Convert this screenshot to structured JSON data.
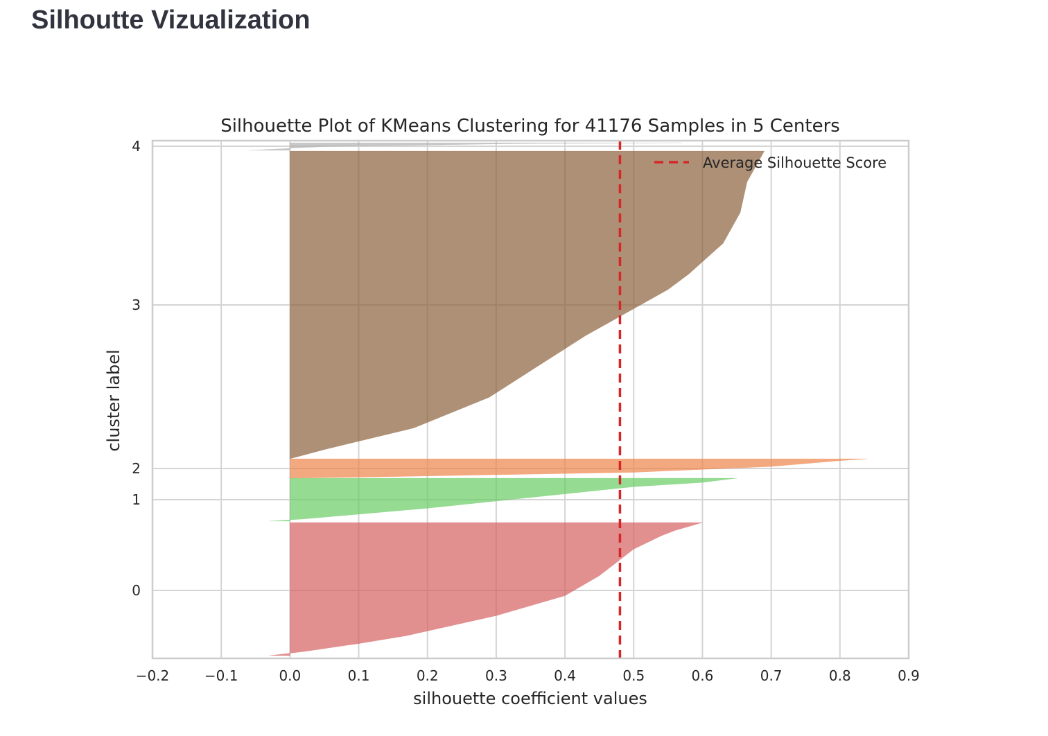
{
  "page": {
    "heading": "Silhoutte Vizualization"
  },
  "chart_data": {
    "type": "area",
    "title": "Silhouette Plot of KMeans Clustering for 41176 Samples in 5 Centers",
    "xlabel": "silhouette coefficient values",
    "ylabel": "cluster label",
    "xlim": [
      -0.2,
      0.9
    ],
    "x_ticks": [
      -0.2,
      -0.1,
      0.0,
      0.1,
      0.2,
      0.3,
      0.4,
      0.5,
      0.6,
      0.7,
      0.8,
      0.9
    ],
    "x_tick_labels": [
      "−0.2",
      "−0.1",
      "0.0",
      "0.1",
      "0.2",
      "0.3",
      "0.4",
      "0.5",
      "0.6",
      "0.7",
      "0.8",
      "0.9"
    ],
    "y_ticks": [
      "0",
      "1",
      "2",
      "3",
      "4"
    ],
    "grid": true,
    "legend_position": "top-right",
    "average_score": 0.48,
    "average_score_label": "Average Silhouette Score",
    "average_score_color": "#d62728",
    "clusters": [
      {
        "label": "0",
        "color": "#d65f5f",
        "profile": [
          [
            0.0,
            -0.03
          ],
          [
            0.03,
            0.02
          ],
          [
            0.09,
            0.1
          ],
          [
            0.15,
            0.17
          ],
          [
            0.3,
            0.3
          ],
          [
            0.45,
            0.4
          ],
          [
            0.6,
            0.45
          ],
          [
            0.8,
            0.5
          ],
          [
            0.9,
            0.54
          ],
          [
            0.94,
            0.56
          ],
          [
            0.97,
            0.58
          ],
          [
            1.0,
            0.6
          ]
        ]
      },
      {
        "label": "1",
        "color": "#6acc64",
        "profile": [
          [
            0.0,
            -0.03
          ],
          [
            0.05,
            0.02
          ],
          [
            0.3,
            0.2
          ],
          [
            0.6,
            0.38
          ],
          [
            0.8,
            0.5
          ],
          [
            0.9,
            0.6
          ],
          [
            1.0,
            0.65
          ]
        ]
      },
      {
        "label": "2",
        "color": "#ee854a",
        "profile": [
          [
            0.0,
            0.0
          ],
          [
            0.05,
            0.1
          ],
          [
            0.3,
            0.5
          ],
          [
            0.6,
            0.7
          ],
          [
            0.9,
            0.8
          ],
          [
            1.0,
            0.84
          ]
        ]
      },
      {
        "label": "3",
        "color": "#8c613c",
        "profile": [
          [
            0.0,
            0.0
          ],
          [
            0.03,
            0.05
          ],
          [
            0.1,
            0.18
          ],
          [
            0.2,
            0.29
          ],
          [
            0.3,
            0.36
          ],
          [
            0.4,
            0.43
          ],
          [
            0.5,
            0.51
          ],
          [
            0.55,
            0.55
          ],
          [
            0.6,
            0.58
          ],
          [
            0.64,
            0.6
          ],
          [
            0.7,
            0.63
          ],
          [
            0.8,
            0.655
          ],
          [
            0.9,
            0.665
          ],
          [
            0.96,
            0.68
          ],
          [
            1.0,
            0.69
          ]
        ]
      },
      {
        "label": "4",
        "color": "#b0b0b0",
        "profile": [
          [
            0.0,
            -0.06
          ],
          [
            0.5,
            0.05
          ],
          [
            0.9,
            0.35
          ],
          [
            1.0,
            0.57
          ]
        ]
      }
    ]
  }
}
